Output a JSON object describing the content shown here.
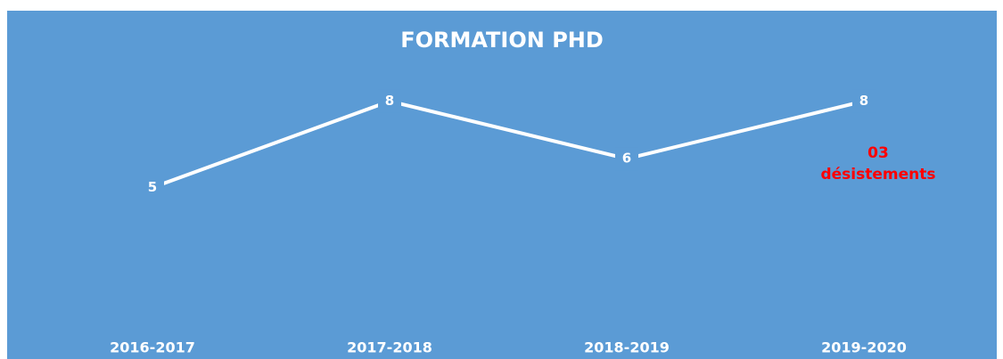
{
  "chart_data": {
    "type": "line",
    "title": "FORMATION PHD",
    "categories": [
      "2016-2017",
      "2017-2018",
      "2018-2019",
      "2019-2020"
    ],
    "values": [
      5,
      8,
      6,
      8
    ],
    "color": "#ffffff",
    "background": "#5b9bd5",
    "annotation": [
      "03",
      "désistements"
    ],
    "annotation_color": "#ff0000"
  }
}
